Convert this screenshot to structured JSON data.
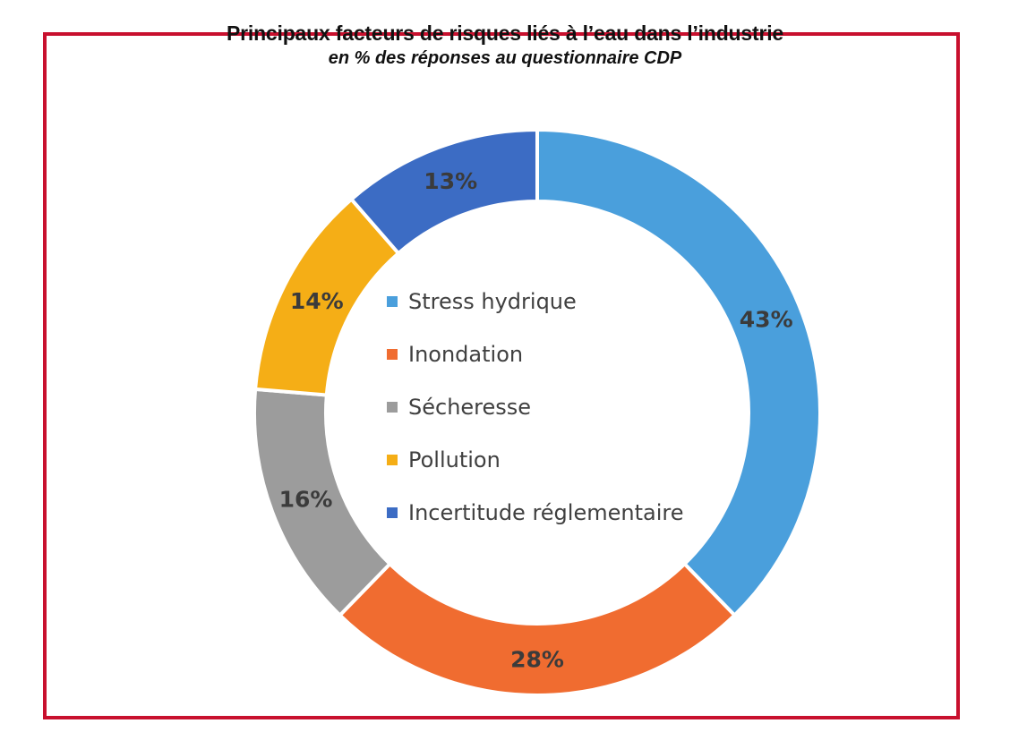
{
  "chart_data": {
    "type": "pie",
    "title": "Principaux facteurs de risques liés à l’eau dans l’industrie",
    "subtitle": "en % des réponses au questionnaire CDP",
    "categories": [
      "Stress hydrique",
      "Inondation",
      "Sécheresse",
      "Pollution",
      "Incertitude réglementaire"
    ],
    "values": [
      43,
      28,
      16,
      14,
      13
    ],
    "value_labels": [
      "43%",
      "28%",
      "16%",
      "14%",
      "13%"
    ],
    "colors": [
      "#4a9fdc",
      "#f06c30",
      "#9c9c9c",
      "#f5ae16",
      "#3c6cc4"
    ],
    "donut": true,
    "legend_position": "center"
  }
}
